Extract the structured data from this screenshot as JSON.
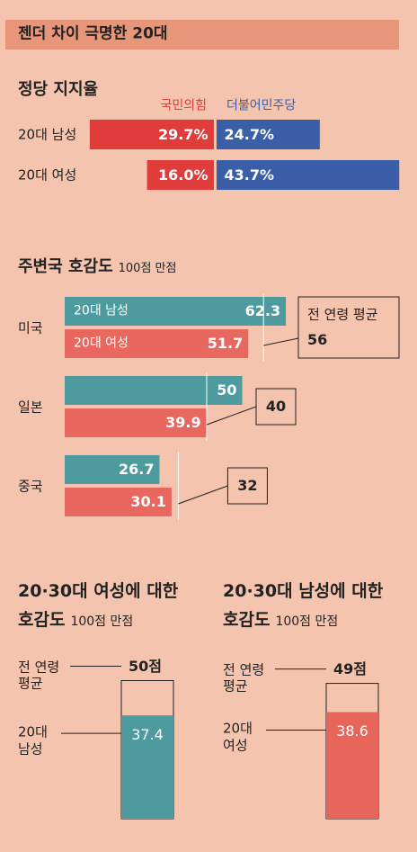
{
  "title": "젠더 차이 극명한 20대",
  "chart_data": [
    {
      "type": "diverging-bar",
      "title": "정당 지지율",
      "categories": [
        "20대 남성",
        "20대 여성"
      ],
      "series": [
        {
          "name": "국민의힘",
          "color": "#e03c3c",
          "values": [
            29.7,
            16.0
          ],
          "value_labels": [
            "29.7%",
            "16.0%"
          ]
        },
        {
          "name": "더불어민주당",
          "color": "#3a5ea8",
          "values": [
            24.7,
            43.7
          ],
          "value_labels": [
            "24.7%",
            "43.7%"
          ]
        }
      ]
    },
    {
      "type": "grouped-hbar",
      "title": "주변국 호감도",
      "subtitle": "100점 만점",
      "categories": [
        "미국",
        "일본",
        "중국"
      ],
      "series": [
        {
          "name": "20대 남성",
          "color": "#4d9a9f",
          "values": [
            62.3,
            50,
            26.7
          ]
        },
        {
          "name": "20대 여성",
          "color": "#e8675e",
          "values": [
            51.7,
            39.9,
            30.1
          ]
        }
      ],
      "reference": {
        "label": "전 연령 평균",
        "values": [
          56,
          40,
          32
        ]
      }
    },
    {
      "type": "reference-bar",
      "title": "20·30대 여성에 대한 호감도",
      "subtitle": "100점 만점",
      "reference": {
        "label": "전 연령 평균",
        "value": 50,
        "value_label": "50점"
      },
      "categories": [
        "20대 남성"
      ],
      "values": [
        37.4
      ],
      "color": "#4d9a9f"
    },
    {
      "type": "reference-bar",
      "title": "20·30대 남성에 대한 호감도",
      "subtitle": "100점 만점",
      "reference": {
        "label": "전 연령 평균",
        "value": 49,
        "value_label": "49점"
      },
      "categories": [
        "20대 여성"
      ],
      "values": [
        38.6
      ],
      "color": "#e8655c"
    }
  ]
}
